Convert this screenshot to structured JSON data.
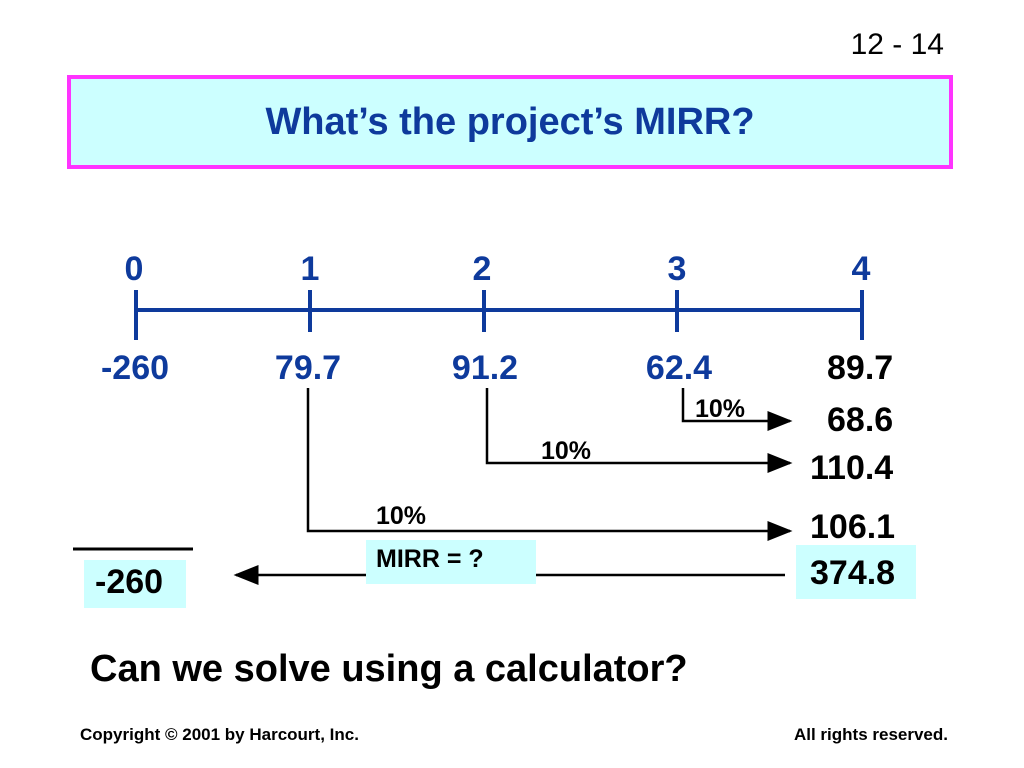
{
  "slide": {
    "number": "12 - 14",
    "title": "What’s the project’s MIRR?",
    "question": "Can we solve using a calculator?"
  },
  "timeline": {
    "periods": [
      "0",
      "1",
      "2",
      "3",
      "4"
    ],
    "cash_flows": [
      "-260",
      "79.7",
      "91.2",
      "62.4",
      "89.7"
    ]
  },
  "compounding": {
    "rate_labels": [
      "10%",
      "10%",
      "10%"
    ],
    "future_values": [
      "68.6",
      "110.4",
      "106.1"
    ],
    "terminal_value": "374.8",
    "present_value": "-260",
    "mirr_label": "MIRR = ?"
  },
  "footer": {
    "copyright": "Copyright © 2001 by Harcourt, Inc.",
    "rights": "All rights reserved."
  },
  "colors": {
    "title_text": "#0e3a9c",
    "title_border": "#ff33ff",
    "highlight": "#ccffff"
  }
}
